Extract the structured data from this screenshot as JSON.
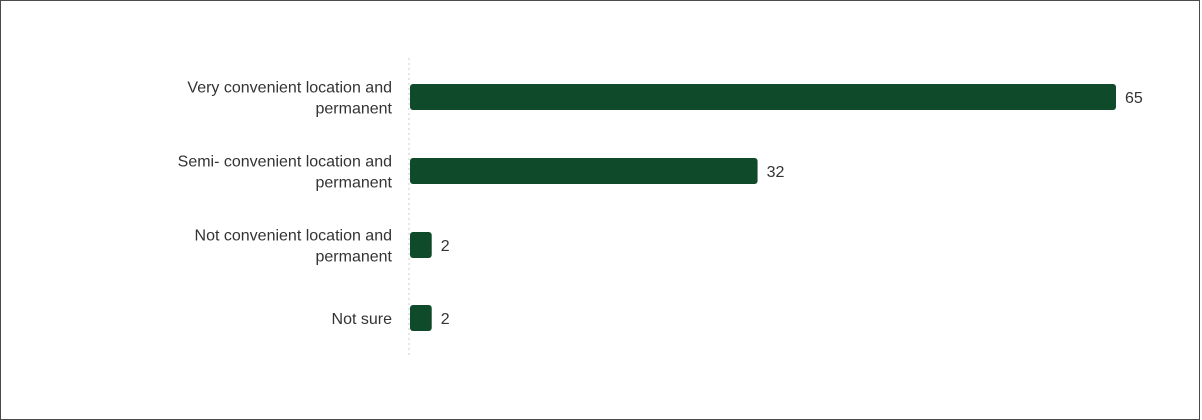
{
  "chart_data": {
    "type": "bar",
    "orientation": "horizontal",
    "title": "",
    "xlabel": "",
    "ylabel": "",
    "categories": [
      [
        "Very convenient location and",
        "permanent"
      ],
      [
        "Semi- convenient location and",
        "permanent"
      ],
      [
        "Not convenient location and",
        "permanent"
      ],
      [
        "Not sure"
      ]
    ],
    "values": [
      65,
      32,
      2,
      2
    ],
    "xlim": [
      0,
      65
    ],
    "grid": false,
    "legend": "none",
    "bar_color": "#0f4a2b",
    "text_color": "#333333",
    "axis_line_color": "#cccccc"
  }
}
